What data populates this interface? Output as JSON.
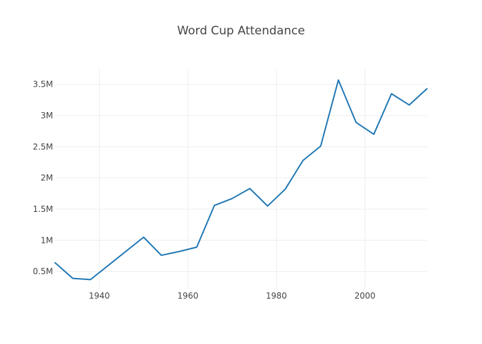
{
  "chart_data": {
    "type": "line",
    "title": "Word Cup Attendance",
    "xlabel": "",
    "ylabel": "",
    "xlim": [
      1930,
      2014
    ],
    "ylim": [
      220000,
      3750000
    ],
    "x_ticks": [
      1940,
      1960,
      1980,
      2000
    ],
    "x_tick_labels": [
      "1940",
      "1960",
      "1980",
      "2000"
    ],
    "y_ticks": [
      500000,
      1000000,
      1500000,
      2000000,
      2500000,
      3000000,
      3500000
    ],
    "y_tick_labels": [
      "0.5M",
      "1M",
      "1.5M",
      "2M",
      "2.5M",
      "3M",
      "3.5M"
    ],
    "grid": true,
    "series": [
      {
        "name": "Attendance",
        "color": "#1f77b4",
        "x": [
          1930,
          1934,
          1938,
          1950,
          1954,
          1958,
          1962,
          1966,
          1970,
          1974,
          1978,
          1982,
          1986,
          1990,
          1994,
          1998,
          2002,
          2006,
          2010,
          2014
        ],
        "y": [
          640000,
          390000,
          370000,
          1050000,
          760000,
          820000,
          890000,
          1560000,
          1670000,
          1830000,
          1550000,
          1820000,
          2280000,
          2510000,
          3570000,
          2890000,
          2700000,
          3350000,
          3170000,
          3430000
        ]
      }
    ]
  }
}
